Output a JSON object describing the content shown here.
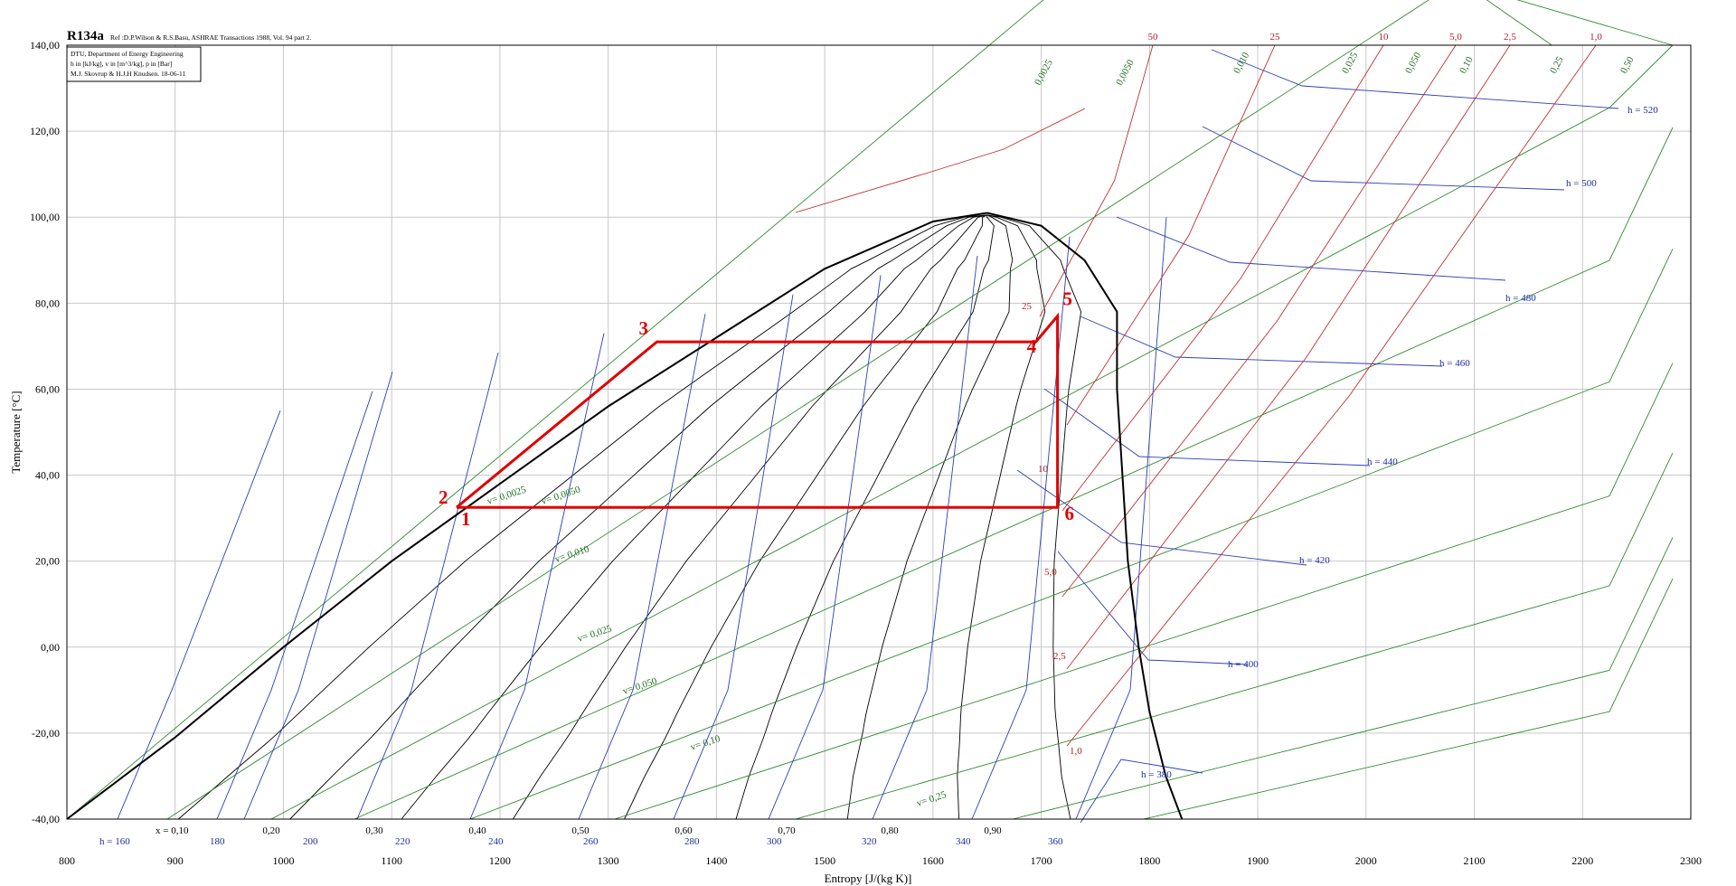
{
  "chart_data": {
    "type": "line",
    "title": "R134a",
    "reference": "Ref :D.P.Wilson & R.S.Basu, ASHRAE Transactions 1988, Vol. 94 part 2.",
    "info_box": [
      "DTU, Department of Energy Engineering",
      "h in [kJ/kg], v in [m^3/kg], p in [Bar]",
      "M.J. Skovrup & H.J.H Knudsen. 18-06-11"
    ],
    "xlabel": "Entropy [J/(kg K)]",
    "ylabel": "Temperature [°C]",
    "xlim": [
      800,
      2300
    ],
    "ylim": [
      -40,
      140
    ],
    "x_ticks": [
      "800",
      "900",
      "1000",
      "1100",
      "1200",
      "1300",
      "1400",
      "1500",
      "1600",
      "1700",
      "1800",
      "1900",
      "2000",
      "2100",
      "2200",
      "2300"
    ],
    "y_ticks": [
      "-40,00",
      "-20,00",
      "0,00",
      "20,00",
      "40,00",
      "60,00",
      "80,00",
      "100,00",
      "120,00",
      "140,00"
    ],
    "grid": true,
    "saturation_dome": {
      "liquid": [
        [
          800,
          -40
        ],
        [
          900,
          -21
        ],
        [
          1000,
          0
        ],
        [
          1100,
          20
        ],
        [
          1200,
          38
        ],
        [
          1300,
          56
        ],
        [
          1400,
          72
        ],
        [
          1500,
          88
        ],
        [
          1600,
          99
        ],
        [
          1650,
          101
        ]
      ],
      "vapor": [
        [
          1650,
          101
        ],
        [
          1700,
          98
        ],
        [
          1740,
          90
        ],
        [
          1770,
          78
        ],
        [
          1770,
          60
        ],
        [
          1775,
          40
        ],
        [
          1780,
          20
        ],
        [
          1790,
          0
        ],
        [
          1800,
          -15
        ],
        [
          1815,
          -30
        ],
        [
          1830,
          -40
        ]
      ]
    },
    "quality_lines": {
      "label_prefix": "x = ",
      "values": [
        "0,10",
        "0,20",
        "0,30",
        "0,40",
        "0,50",
        "0,60",
        "0,70",
        "0,80",
        "0,90"
      ]
    },
    "enthalpy_labels": [
      "h = 160",
      "180",
      "200",
      "220",
      "240",
      "260",
      "280",
      "300",
      "320",
      "340",
      "360",
      "h = 380",
      "h = 400",
      "h = 420",
      "h = 440",
      "h = 460",
      "h = 480",
      "h = 500",
      "h = 520"
    ],
    "pressure_labels": [
      "50",
      "25",
      "10",
      "5,0",
      "2,5",
      "1,0"
    ],
    "pressure_inner_labels": [
      "25",
      "10",
      "5,0",
      "2,5",
      "1,0"
    ],
    "volume_labels_top": [
      "0,0025",
      "0,0050",
      "0,010",
      "0,025",
      "0,050",
      "0,10",
      "0,25",
      "0,50"
    ],
    "volume_labels_inner": [
      "v= 0,0025",
      "v= 0,0050",
      "v= 0,010",
      "v= 0,025",
      "v= 0,050",
      "v= 0,10",
      "v= 0,25"
    ],
    "cycle": {
      "color": "#e00000",
      "points": [
        {
          "label": "1",
          "s": 1160,
          "t": 32.5
        },
        {
          "label": "2",
          "s": 1160,
          "t": 32.5
        },
        {
          "label": "3",
          "s": 1345,
          "t": 71
        },
        {
          "label": "4",
          "s": 1695,
          "t": 71
        },
        {
          "label": "5",
          "s": 1715,
          "t": 77
        },
        {
          "label": "6",
          "s": 1715,
          "t": 32.5
        }
      ]
    }
  }
}
